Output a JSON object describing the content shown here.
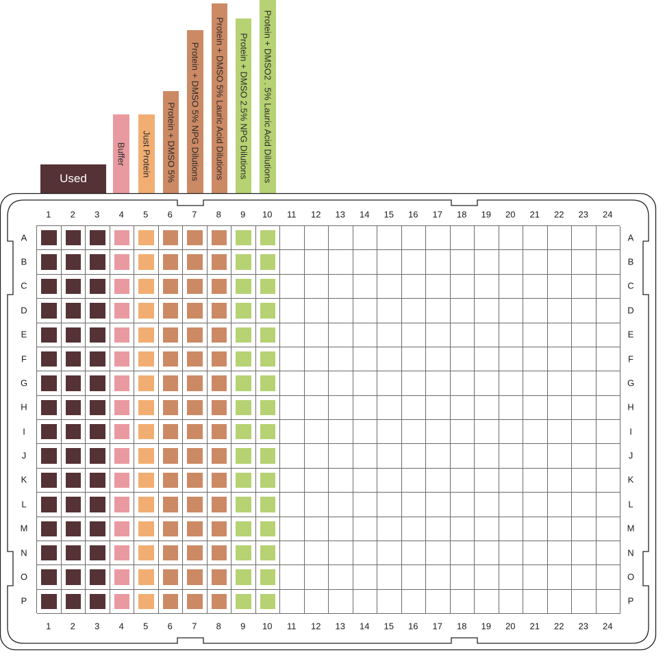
{
  "header_labels": {
    "used": "Used",
    "buffer": "Buffer",
    "just_protein": "Just Protein",
    "protein_dmso5": "Protein + DMSO 5%",
    "npg_5": "Protein + DMSO 5% NPG Dilutions",
    "lauric_5": "Protein + DMSO 5% Lauric Acid Dilutions",
    "npg_25": "Protein + DMSO 2.5% NPG Dilutions",
    "lauric_25": "Protein + DMSO2 . 5% Lauric Acid Dilutions"
  },
  "columns": [
    "1",
    "2",
    "3",
    "4",
    "5",
    "6",
    "7",
    "8",
    "9",
    "10",
    "11",
    "12",
    "13",
    "14",
    "15",
    "16",
    "17",
    "18",
    "19",
    "20",
    "21",
    "22",
    "23",
    "24"
  ],
  "rows": [
    "A",
    "B",
    "C",
    "D",
    "E",
    "F",
    "G",
    "H",
    "I",
    "J",
    "K",
    "L",
    "M",
    "N",
    "O",
    "P"
  ],
  "colors": {
    "used": "#553235",
    "buffer": "#e99aa0",
    "just_protein": "#f2ae72",
    "protein_dmso": "#cc8a64",
    "dmso_25": "#b6d273"
  },
  "column_groups": {
    "1": "used",
    "2": "used",
    "3": "used",
    "4": "buffer",
    "5": "just_protein",
    "6": "protein_dmso",
    "7": "protein_dmso",
    "8": "protein_dmso",
    "9": "dmso_25",
    "10": "dmso_25"
  }
}
